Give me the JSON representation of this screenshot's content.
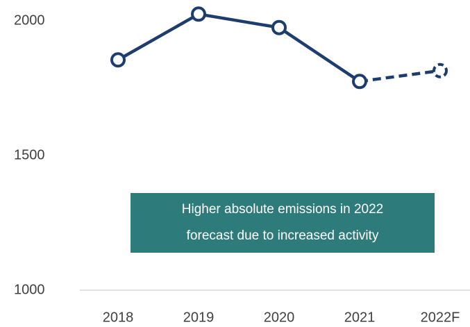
{
  "chart_data": {
    "type": "line",
    "categories": [
      "2018",
      "2019",
      "2020",
      "2021",
      "2022F"
    ],
    "series": [
      {
        "color": "#1c3d6e",
        "values": [
          1855,
          2025,
          1975,
          1775,
          1815
        ]
      }
    ],
    "dashed_last_segment": true,
    "ylim": [
      1000,
      2050
    ],
    "yticks": [
      1000,
      1500,
      2000
    ],
    "annotation": [
      "Higher absolute emissions in 2022",
      "forecast due to increased activity"
    ],
    "annotation_color": "#2e7b7b"
  }
}
